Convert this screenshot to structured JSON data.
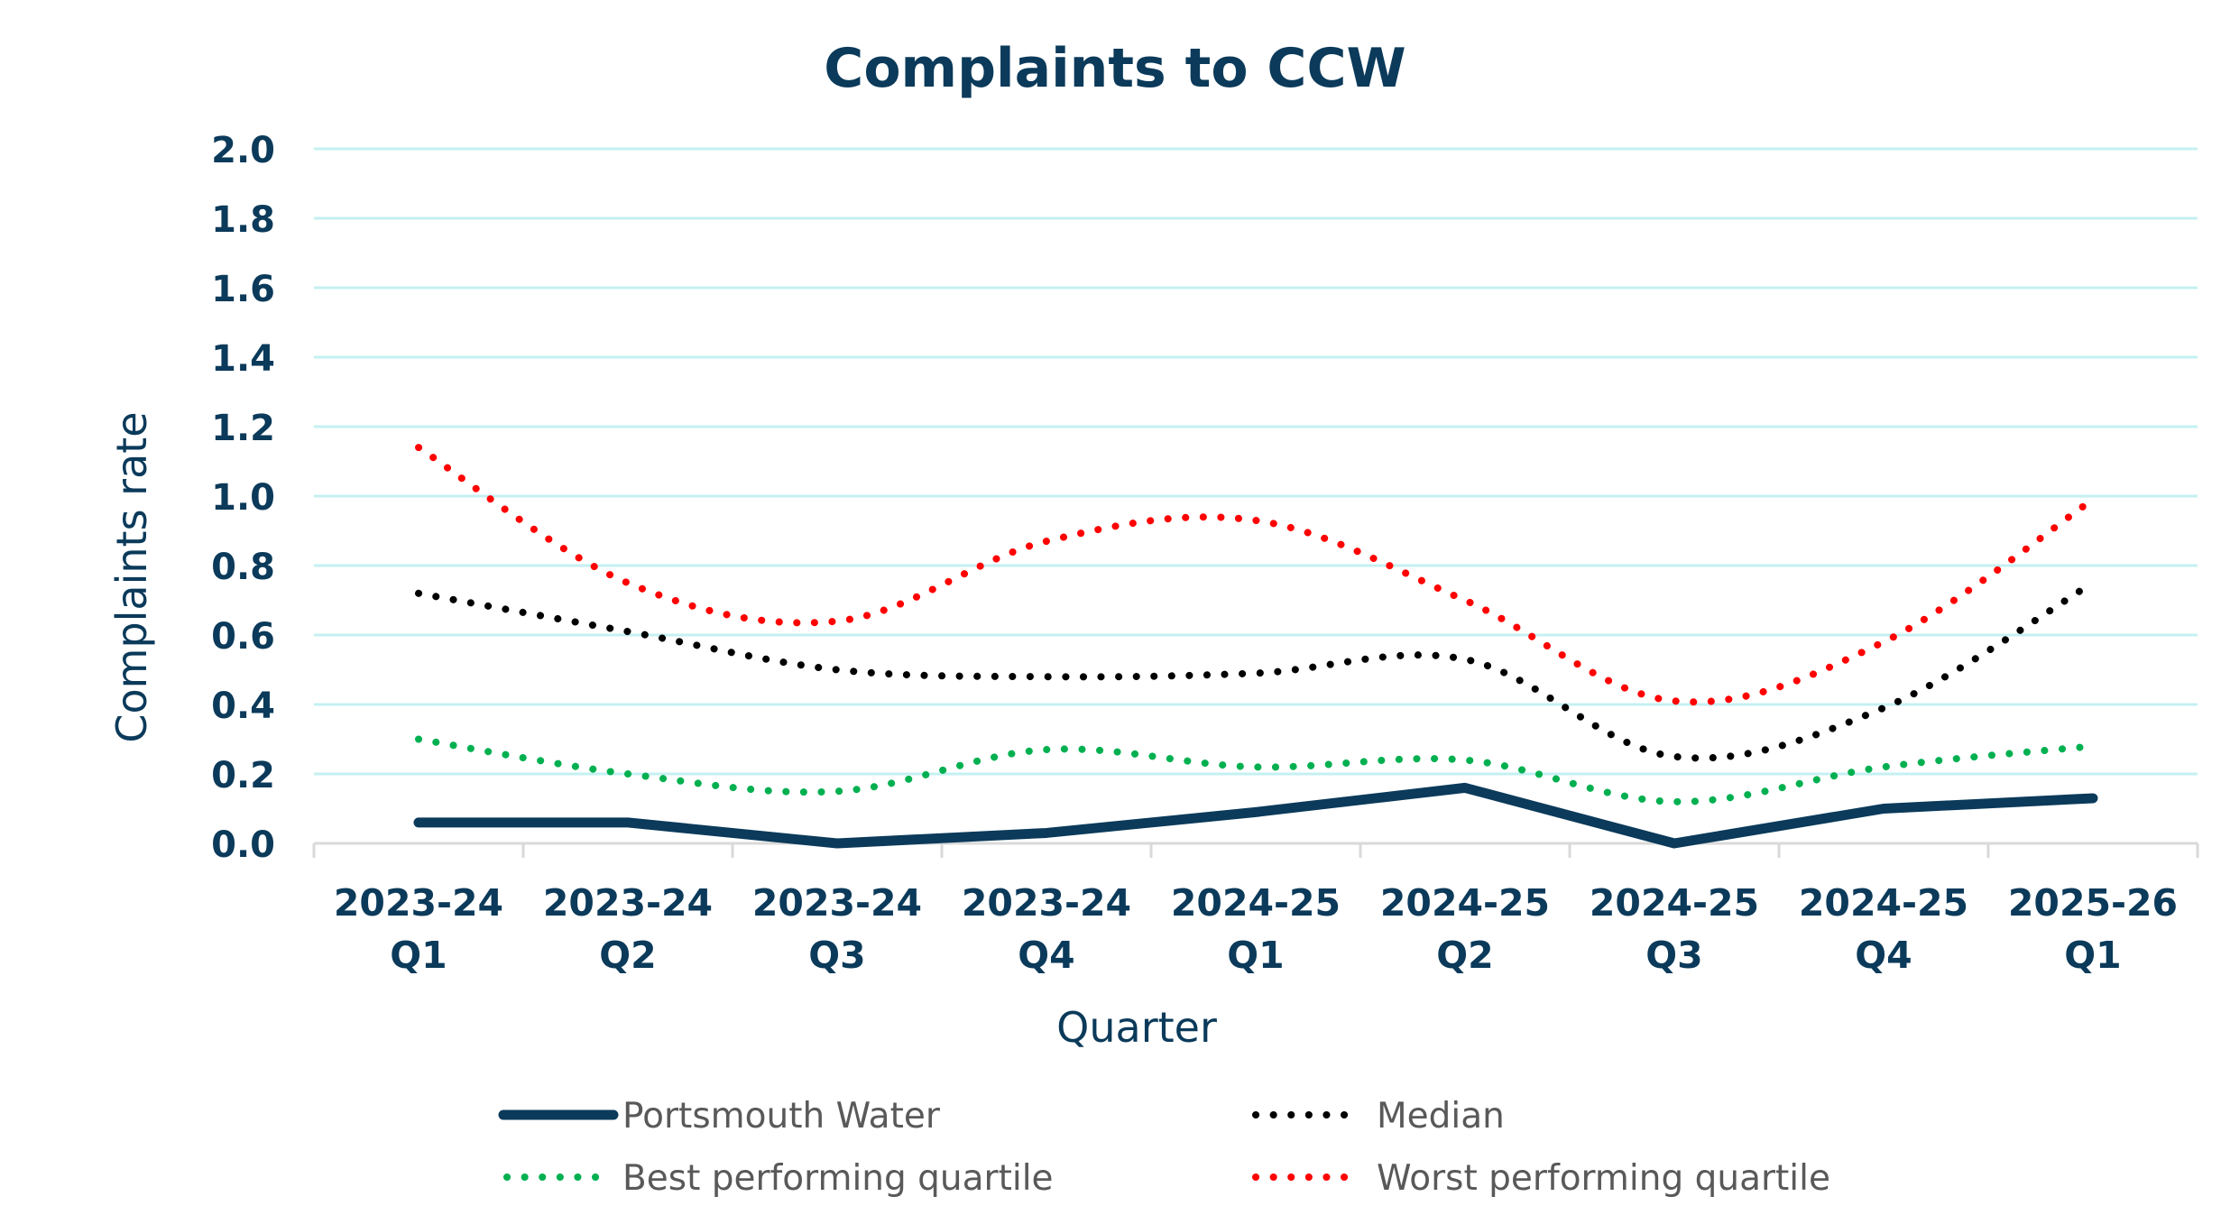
{
  "chart_data": {
    "type": "line",
    "title": "Complaints to CCW",
    "xlabel": "Quarter",
    "ylabel": "Complaints rate",
    "ylim": [
      0,
      2.0
    ],
    "ytick_step": 0.2,
    "yticks": [
      "0.0",
      "0.2",
      "0.4",
      "0.6",
      "0.8",
      "1.0",
      "1.2",
      "1.4",
      "1.6",
      "1.8",
      "2.0"
    ],
    "grid": true,
    "legend_position": "bottom",
    "categories": [
      [
        "2023-24",
        "Q1"
      ],
      [
        "2023-24",
        "Q2"
      ],
      [
        "2023-24",
        "Q3"
      ],
      [
        "2023-24",
        "Q4"
      ],
      [
        "2024-25",
        "Q1"
      ],
      [
        "2024-25",
        "Q2"
      ],
      [
        "2024-25",
        "Q3"
      ],
      [
        "2024-25",
        "Q4"
      ],
      [
        "2025-26",
        "Q1"
      ]
    ],
    "series": [
      {
        "name": "Portsmouth Water",
        "style": "solid",
        "color": "#0b3a5a",
        "values": [
          0.06,
          0.06,
          0.0,
          0.03,
          0.09,
          0.16,
          0.0,
          0.1,
          0.13
        ]
      },
      {
        "name": "Median",
        "style": "dotted",
        "color": "#000000",
        "values": [
          0.72,
          0.61,
          0.5,
          0.48,
          0.49,
          0.53,
          0.25,
          0.39,
          0.75
        ]
      },
      {
        "name": "Best performing quartile",
        "style": "dotted",
        "color": "#00b050",
        "values": [
          0.3,
          0.2,
          0.15,
          0.27,
          0.22,
          0.24,
          0.12,
          0.22,
          0.28
        ]
      },
      {
        "name": "Worst performing quartile",
        "style": "dotted",
        "color": "#ff0000",
        "values": [
          1.14,
          0.75,
          0.64,
          0.87,
          0.93,
          0.7,
          0.41,
          0.58,
          0.99
        ]
      }
    ],
    "legend_order": [
      "Portsmouth Water",
      "Median",
      "Best performing quartile",
      "Worst performing quartile"
    ]
  },
  "colors": {
    "text": "#0b3a5a",
    "gridline": "#c5f0f2",
    "axis": "#d9d9d9",
    "legend_text": "#595959"
  }
}
